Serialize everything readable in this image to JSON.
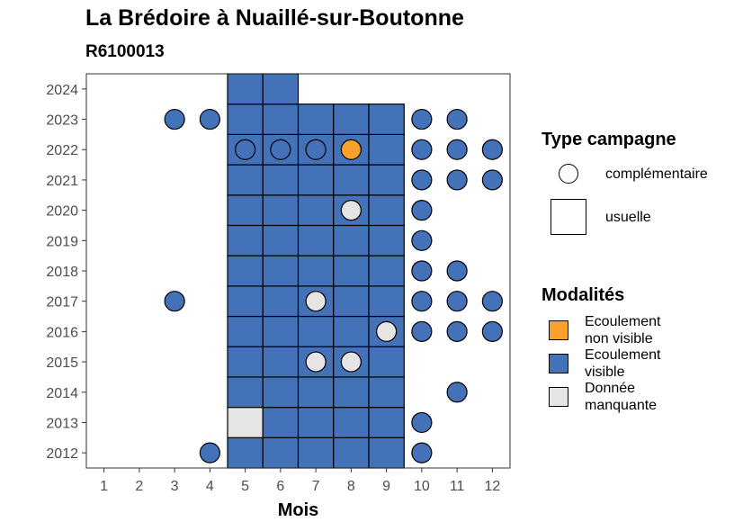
{
  "title": "La Brédoire à Nuaillé-sur-Boutonne",
  "subtitle": "R6100013",
  "colors": {
    "Ecoulement non visible": "#F8A12C",
    "Ecoulement visible": "#4472B8",
    "Donnée manquante": "#E5E5E5"
  },
  "legend": {
    "shape_title": "Type campagne",
    "shape_items": [
      {
        "label": "complémentaire",
        "shape": "circle"
      },
      {
        "label": "usuelle",
        "shape": "square"
      }
    ],
    "fill_title": "Modalités",
    "fill_items": [
      {
        "label": "Ecoulement\nnon visible",
        "key": "Ecoulement non visible"
      },
      {
        "label": "Ecoulement\nvisible",
        "key": "Ecoulement visible"
      },
      {
        "label": "Donnée\nmanquante",
        "key": "Donnée manquante"
      }
    ]
  },
  "chart_data": {
    "type": "heatmap",
    "xlabel": "Mois",
    "ylabel": "",
    "x_ticks": [
      1,
      2,
      3,
      4,
      5,
      6,
      7,
      8,
      9,
      10,
      11,
      12
    ],
    "y_ticks": [
      2012,
      2013,
      2014,
      2015,
      2016,
      2017,
      2018,
      2019,
      2020,
      2021,
      2022,
      2023,
      2024
    ],
    "xlim": [
      0.5,
      12.5
    ],
    "ylim": [
      2011.5,
      2024.5
    ],
    "grid": false,
    "legend_position": "right",
    "usuelle": [
      {
        "year": 2012,
        "months": [
          5,
          6,
          7,
          8,
          9
        ],
        "modalite": "Ecoulement visible"
      },
      {
        "year": 2013,
        "months": [
          5
        ],
        "modalite": "Donnée manquante"
      },
      {
        "year": 2013,
        "months": [
          6,
          7,
          8,
          9
        ],
        "modalite": "Ecoulement visible"
      },
      {
        "year": 2014,
        "months": [
          5,
          6,
          7,
          8,
          9
        ],
        "modalite": "Ecoulement visible"
      },
      {
        "year": 2015,
        "months": [
          5,
          6,
          7,
          8,
          9
        ],
        "modalite": "Ecoulement visible"
      },
      {
        "year": 2016,
        "months": [
          5,
          6,
          7,
          8,
          9
        ],
        "modalite": "Ecoulement visible"
      },
      {
        "year": 2017,
        "months": [
          5,
          6,
          7,
          8,
          9
        ],
        "modalite": "Ecoulement visible"
      },
      {
        "year": 2018,
        "months": [
          5,
          6,
          7,
          8,
          9
        ],
        "modalite": "Ecoulement visible"
      },
      {
        "year": 2019,
        "months": [
          5,
          6,
          7,
          8,
          9
        ],
        "modalite": "Ecoulement visible"
      },
      {
        "year": 2020,
        "months": [
          5,
          6,
          7,
          8,
          9
        ],
        "modalite": "Ecoulement visible"
      },
      {
        "year": 2021,
        "months": [
          5,
          6,
          7,
          8,
          9
        ],
        "modalite": "Ecoulement visible"
      },
      {
        "year": 2022,
        "months": [
          5,
          6,
          7,
          8,
          9
        ],
        "modalite": "Ecoulement visible"
      },
      {
        "year": 2023,
        "months": [
          5,
          6,
          7,
          8,
          9
        ],
        "modalite": "Ecoulement visible"
      },
      {
        "year": 2024,
        "months": [
          5,
          6
        ],
        "modalite": "Ecoulement visible"
      }
    ],
    "complementaire": [
      {
        "year": 2012,
        "month": 4,
        "modalite": "Ecoulement visible"
      },
      {
        "year": 2012,
        "month": 10,
        "modalite": "Ecoulement visible"
      },
      {
        "year": 2013,
        "month": 10,
        "modalite": "Ecoulement visible"
      },
      {
        "year": 2014,
        "month": 11,
        "modalite": "Ecoulement visible"
      },
      {
        "year": 2015,
        "month": 7,
        "modalite": "Donnée manquante"
      },
      {
        "year": 2015,
        "month": 8,
        "modalite": "Donnée manquante"
      },
      {
        "year": 2016,
        "month": 9,
        "modalite": "Donnée manquante"
      },
      {
        "year": 2016,
        "month": 10,
        "modalite": "Ecoulement visible"
      },
      {
        "year": 2016,
        "month": 11,
        "modalite": "Ecoulement visible"
      },
      {
        "year": 2016,
        "month": 12,
        "modalite": "Ecoulement visible"
      },
      {
        "year": 2017,
        "month": 3,
        "modalite": "Ecoulement visible"
      },
      {
        "year": 2017,
        "month": 7,
        "modalite": "Donnée manquante"
      },
      {
        "year": 2017,
        "month": 10,
        "modalite": "Ecoulement visible"
      },
      {
        "year": 2017,
        "month": 11,
        "modalite": "Ecoulement visible"
      },
      {
        "year": 2017,
        "month": 12,
        "modalite": "Ecoulement visible"
      },
      {
        "year": 2018,
        "month": 10,
        "modalite": "Ecoulement visible"
      },
      {
        "year": 2018,
        "month": 11,
        "modalite": "Ecoulement visible"
      },
      {
        "year": 2019,
        "month": 10,
        "modalite": "Ecoulement visible"
      },
      {
        "year": 2020,
        "month": 8,
        "modalite": "Donnée manquante"
      },
      {
        "year": 2020,
        "month": 10,
        "modalite": "Ecoulement visible"
      },
      {
        "year": 2021,
        "month": 10,
        "modalite": "Ecoulement visible"
      },
      {
        "year": 2021,
        "month": 11,
        "modalite": "Ecoulement visible"
      },
      {
        "year": 2021,
        "month": 12,
        "modalite": "Ecoulement visible"
      },
      {
        "year": 2022,
        "month": 5,
        "modalite": "Ecoulement visible"
      },
      {
        "year": 2022,
        "month": 6,
        "modalite": "Ecoulement visible"
      },
      {
        "year": 2022,
        "month": 7,
        "modalite": "Ecoulement visible"
      },
      {
        "year": 2022,
        "month": 8,
        "modalite": "Ecoulement non visible"
      },
      {
        "year": 2022,
        "month": 10,
        "modalite": "Ecoulement visible"
      },
      {
        "year": 2022,
        "month": 11,
        "modalite": "Ecoulement visible"
      },
      {
        "year": 2022,
        "month": 12,
        "modalite": "Ecoulement visible"
      },
      {
        "year": 2023,
        "month": 3,
        "modalite": "Ecoulement visible"
      },
      {
        "year": 2023,
        "month": 4,
        "modalite": "Ecoulement visible"
      },
      {
        "year": 2023,
        "month": 10,
        "modalite": "Ecoulement visible"
      },
      {
        "year": 2023,
        "month": 11,
        "modalite": "Ecoulement visible"
      }
    ]
  }
}
